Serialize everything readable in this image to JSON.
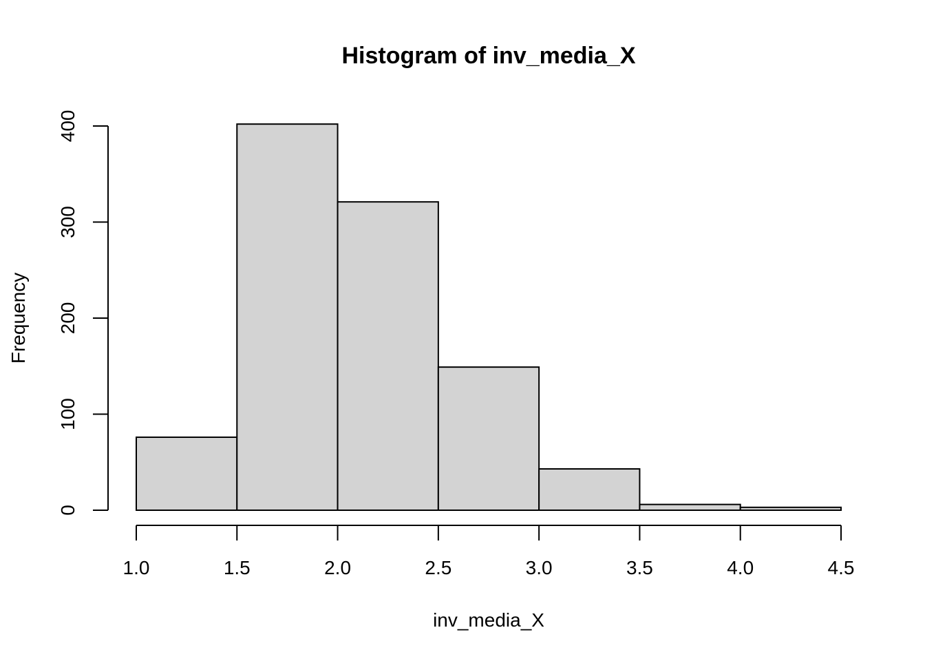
{
  "chart_data": {
    "type": "bar",
    "title": "Histogram of inv_media_X",
    "xlabel": "inv_media_X",
    "ylabel": "Frequency",
    "bin_edges": [
      1.0,
      1.5,
      2.0,
      2.5,
      3.0,
      3.5,
      4.0,
      4.5
    ],
    "values": [
      76,
      402,
      321,
      149,
      43,
      6,
      3
    ],
    "xlim": [
      1.0,
      4.5
    ],
    "ylim": [
      0,
      400
    ],
    "x_ticks": [
      "1.0",
      "1.5",
      "2.0",
      "2.5",
      "3.0",
      "3.5",
      "4.0",
      "4.5"
    ],
    "y_ticks": [
      "0",
      "100",
      "200",
      "300",
      "400"
    ],
    "bar_fill": "#d3d3d3",
    "bar_stroke": "#000000",
    "grid": false,
    "legend": "none"
  }
}
